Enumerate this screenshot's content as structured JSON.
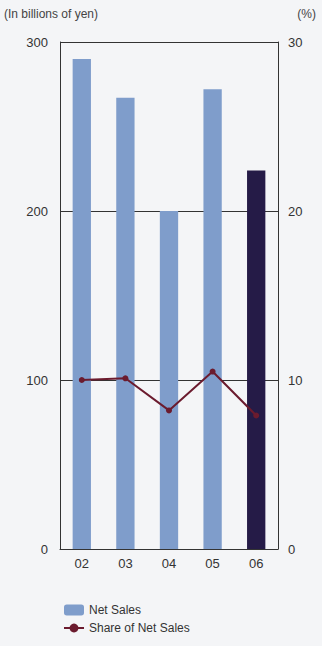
{
  "chart_data": {
    "type": "bar",
    "y_label": "(In billions of yen)",
    "y2_label": "(%)",
    "categories": [
      "02",
      "03",
      "04",
      "05",
      "06"
    ],
    "series": [
      {
        "name": "Net Sales",
        "type": "bar",
        "colors": [
          "#7f9dcb",
          "#7f9dcb",
          "#7f9dcb",
          "#7f9dcb",
          "#251b47"
        ],
        "values": [
          290,
          267,
          200,
          272,
          224
        ]
      },
      {
        "name": "Share of Net Sales",
        "type": "line",
        "axis": "y2",
        "color": "#6b1b2e",
        "marker": "circle",
        "values": [
          10.0,
          10.1,
          8.2,
          10.5,
          7.9
        ]
      }
    ],
    "ylim": [
      0,
      300
    ],
    "yticks": [
      0,
      100,
      200,
      300
    ],
    "y2lim": [
      0,
      30
    ],
    "y2ticks": [
      0,
      10,
      20,
      30
    ],
    "grid": true,
    "legend": "bottom-left"
  }
}
